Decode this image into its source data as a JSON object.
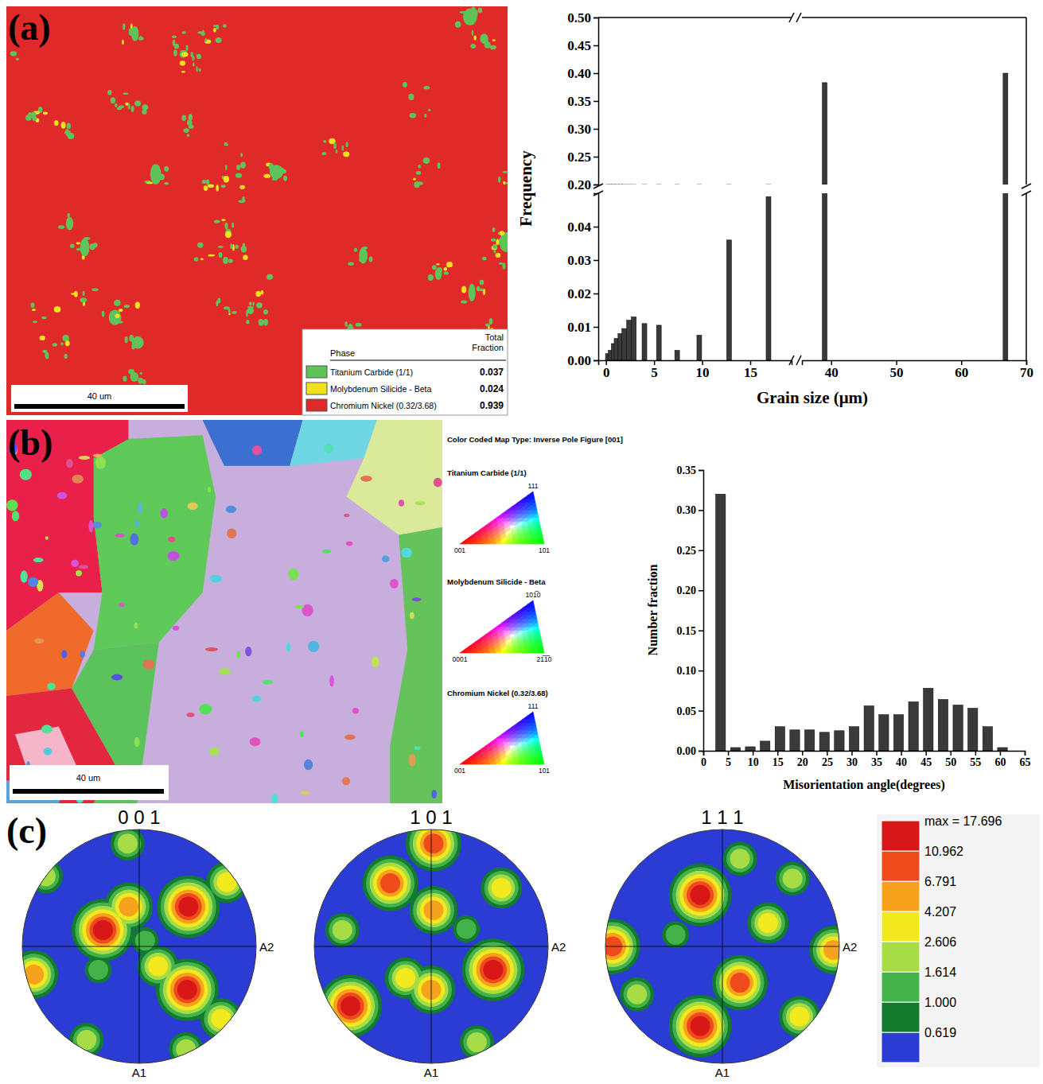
{
  "chart_data": [
    {
      "type": "phase_map",
      "panel": "(a)",
      "scale_bar": "40 um",
      "columns": [
        "Phase",
        "Total Fraction"
      ],
      "phases": [
        {
          "name": "Titanium Carbide (1/1)",
          "fraction": 0.037,
          "color": "#5ec45a"
        },
        {
          "name": "Molybdenum Silicide - Beta",
          "fraction": 0.024,
          "color": "#f2e21b"
        },
        {
          "name": "Chromium Nickel (0.32/3.68)",
          "fraction": 0.939,
          "color": "#e02a2a"
        }
      ]
    },
    {
      "type": "bar",
      "x_title": "Grain size (μm)",
      "y_title": "Frequency",
      "color": "#3a3a3a",
      "x": [
        0.2,
        0.5,
        0.8,
        1.1,
        1.5,
        1.9,
        2.4,
        2.9,
        4.0,
        5.5,
        7.4,
        9.7,
        12.8,
        16.9,
        39.0,
        66.8
      ],
      "values": [
        0.002,
        0.003,
        0.005,
        0.0065,
        0.008,
        0.0095,
        0.012,
        0.013,
        0.011,
        0.0105,
        0.003,
        0.0075,
        0.036,
        0.049,
        0.383,
        0.4
      ],
      "xlim": [
        [
          -0.8,
          19.3
        ],
        [
          35.5,
          70
        ]
      ],
      "xticks": [
        [
          0,
          5,
          10,
          15
        ],
        [
          40,
          50,
          60,
          70
        ]
      ],
      "ylim": [
        [
          0,
          0.05
        ],
        [
          0.2,
          0.5
        ]
      ],
      "yticks": [
        [
          {
            "value": 0,
            "label": "0.00"
          },
          {
            "value": 0.01,
            "label": "0.01"
          },
          {
            "value": 0.02,
            "label": "0.02"
          },
          {
            "value": 0.03,
            "label": "0.03"
          },
          {
            "value": 0.04,
            "label": "0.04"
          }
        ],
        [
          {
            "value": 0.2,
            "label": "0.20"
          },
          {
            "value": 0.25,
            "label": "0.25"
          },
          {
            "value": 0.3,
            "label": "0.30"
          },
          {
            "value": 0.35,
            "label": "0.35"
          },
          {
            "value": 0.4,
            "label": "0.40"
          },
          {
            "value": 0.45,
            "label": "0.45"
          },
          {
            "value": 0.5,
            "label": "0.50"
          }
        ]
      ]
    },
    {
      "type": "orientation_map",
      "panel": "(b)",
      "scale_bar": "40 um",
      "key_title": "Color Coded Map Type: Inverse Pole Figure [001]",
      "keys": [
        {
          "name": "Titanium Carbide (1/1)",
          "corners": [
            "001",
            "101",
            "111"
          ]
        },
        {
          "name": "Molybdenum Silicide - Beta",
          "corners": [
            "0001",
            "21̅1̅0",
            "101̅0"
          ]
        },
        {
          "name": "Chromium Nickel (0.32/3.68)",
          "corners": [
            "001",
            "101",
            "111"
          ]
        }
      ]
    },
    {
      "type": "histogram",
      "x_title": "Misorientation angle(degrees)",
      "y_title": "Number fraction",
      "color": "#3a3a3a",
      "bins": [
        2,
        5,
        8,
        11,
        14,
        17,
        20,
        23,
        26,
        29,
        32,
        35,
        38,
        41,
        44,
        47,
        50,
        53,
        56,
        59,
        62
      ],
      "values": [
        0.32,
        0.004,
        0.005,
        0.012,
        0.03,
        0.026,
        0.026,
        0.023,
        0.025,
        0.03,
        0.056,
        0.045,
        0.045,
        0.061,
        0.078,
        0.064,
        0.057,
        0.053,
        0.03,
        0.004
      ],
      "xlim": [
        0,
        65
      ],
      "xticks": [
        0,
        5,
        10,
        15,
        20,
        25,
        30,
        35,
        40,
        45,
        50,
        55,
        60,
        65
      ],
      "ylim": [
        0,
        0.35
      ],
      "yticks": [
        {
          "value": 0,
          "label": "0.00"
        },
        {
          "value": 0.05,
          "label": "0.05"
        },
        {
          "value": 0.1,
          "label": "0.10"
        },
        {
          "value": 0.15,
          "label": "0.15"
        },
        {
          "value": 0.2,
          "label": "0.20"
        },
        {
          "value": 0.25,
          "label": "0.25"
        },
        {
          "value": 0.3,
          "label": "0.30"
        },
        {
          "value": 0.35,
          "label": "0.35"
        }
      ]
    },
    {
      "type": "pole_figure",
      "panel": "(c)",
      "x_title": "A2",
      "y_title": "A1",
      "colorbar": {
        "ticks": [
          0.619,
          {
            "value": 1,
            "label": "1.000"
          },
          1.614,
          2.606,
          4.207,
          6.791,
          10.962,
          {
            "value": 17.696,
            "label": "max = 17.696"
          }
        ],
        "colors": [
          "#2a3cd4",
          "#137a2e",
          "#44b24a",
          "#a8dc46",
          "#f2ea1e",
          "#f7a21d",
          "#ee4a1c",
          "#d81818"
        ]
      },
      "figures": [
        {
          "title": "0 0 1",
          "poles": [
            {
              "x": 0.42,
              "y": 0.34,
              "level": 10.962
            },
            {
              "x": 0.41,
              "y": -0.37,
              "level": 10.962
            },
            {
              "x": -0.31,
              "y": 0.14,
              "level": 10.962
            },
            {
              "x": -0.09,
              "y": 0.34,
              "level": 4.207
            },
            {
              "x": -0.9,
              "y": -0.24,
              "level": 4.207
            },
            {
              "x": 0.16,
              "y": -0.17,
              "level": 2.606
            },
            {
              "x": -0.8,
              "y": 0.6,
              "level": 1.614
            },
            {
              "x": 0.75,
              "y": 0.55,
              "level": 2.606
            },
            {
              "x": -0.1,
              "y": 0.88,
              "level": 1.614
            },
            {
              "x": 0.7,
              "y": -0.62,
              "level": 2.606
            },
            {
              "x": -0.45,
              "y": -0.8,
              "level": 1.614
            },
            {
              "x": 0.4,
              "y": -0.88,
              "level": 1.614
            },
            {
              "x": -0.35,
              "y": -0.2,
              "level": 1
            },
            {
              "x": 0.05,
              "y": 0.05,
              "level": 1
            }
          ]
        },
        {
          "title": "1 0 1",
          "poles": [
            {
              "x": -0.69,
              "y": -0.51,
              "level": 10.962
            },
            {
              "x": 0.53,
              "y": -0.2,
              "level": 10.962
            },
            {
              "x": -0.35,
              "y": 0.54,
              "level": 6.791
            },
            {
              "x": 0.02,
              "y": 0.88,
              "level": 6.791
            },
            {
              "x": 0.02,
              "y": 0.31,
              "level": 4.207
            },
            {
              "x": 0,
              "y": -0.37,
              "level": 4.207
            },
            {
              "x": 0.6,
              "y": 0.5,
              "level": 2.606
            },
            {
              "x": 0.39,
              "y": -0.82,
              "level": 1.614
            },
            {
              "x": -0.76,
              "y": 0.14,
              "level": 1.614
            },
            {
              "x": -0.22,
              "y": -0.27,
              "level": 2.606
            },
            {
              "x": 0.3,
              "y": 0.15,
              "level": 1
            }
          ]
        },
        {
          "title": "1 1 1",
          "poles": [
            {
              "x": -0.19,
              "y": 0.44,
              "level": 10.962
            },
            {
              "x": 0.15,
              "y": -0.31,
              "level": 6.791
            },
            {
              "x": -0.19,
              "y": -0.68,
              "level": 10.962
            },
            {
              "x": -0.94,
              "y": 0,
              "level": 6.791
            },
            {
              "x": 0.95,
              "y": -0.03,
              "level": 4.207
            },
            {
              "x": 0.39,
              "y": 0.2,
              "level": 2.606
            },
            {
              "x": -0.73,
              "y": -0.41,
              "level": 1.614
            },
            {
              "x": 0.66,
              "y": -0.6,
              "level": 2.606
            },
            {
              "x": 0.15,
              "y": 0.75,
              "level": 1.614
            },
            {
              "x": 0.6,
              "y": 0.58,
              "level": 1.614
            },
            {
              "x": -0.4,
              "y": 0.1,
              "level": 1
            }
          ]
        }
      ]
    }
  ]
}
